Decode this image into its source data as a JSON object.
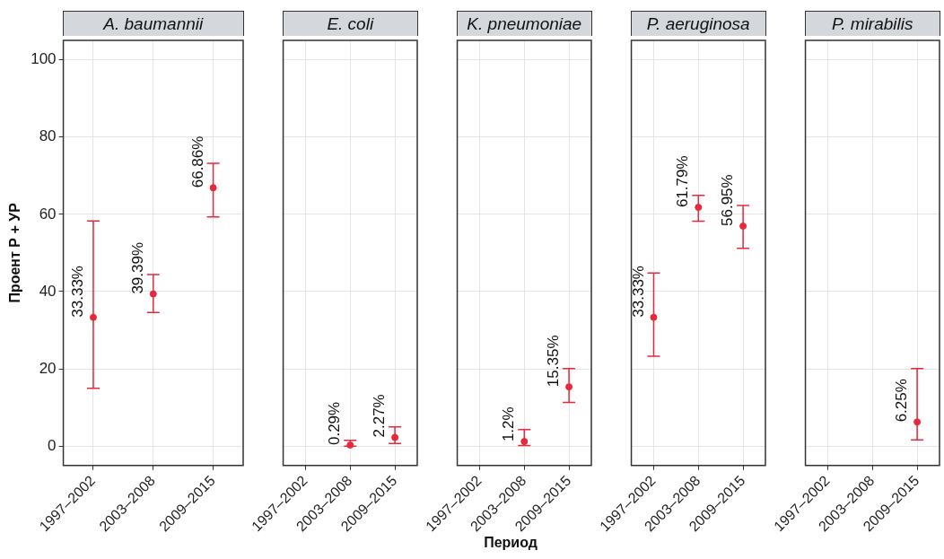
{
  "chart_data": [
    {
      "type": "scatter",
      "title": "A. baumannii",
      "ylabel": "Проент Р + УР",
      "categories": [
        "1997–2002",
        "2003–2008",
        "2009–2015"
      ],
      "series": [
        {
          "color": "#e8283c",
          "values": [
            33.33,
            39.39,
            66.86
          ],
          "errors": [
            [
              15.0,
              58.3
            ],
            [
              34.6,
              44.4
            ],
            [
              59.3,
              73.2
            ]
          ],
          "value_labels": [
            "33.33%",
            "39.39%",
            "66.86%"
          ]
        }
      ],
      "ylim": [
        -5,
        105
      ],
      "yticks": [
        0,
        20,
        40,
        60,
        80,
        100
      ],
      "grid": true,
      "marker": "circle"
    },
    {
      "type": "scatter",
      "title": "E. coli",
      "categories": [
        "1997–2002",
        "2003–2008",
        "2009–2015"
      ],
      "series": [
        {
          "color": "#e8283c",
          "values": [
            null,
            0.29,
            2.27
          ],
          "errors": [
            null,
            [
              0,
              1.5
            ],
            [
              0.7,
              5.0
            ]
          ],
          "value_labels": [
            null,
            "0.29%",
            "2.27%"
          ]
        }
      ],
      "ylim": [
        -5,
        105
      ],
      "yticks": [
        0,
        20,
        40,
        60,
        80,
        100
      ],
      "grid": true,
      "marker": "circle",
      "tick_labels": "x"
    },
    {
      "type": "scatter",
      "title": "K. pneumoniae",
      "xlabel": "Период",
      "categories": [
        "1997–2002",
        "2003–2008",
        "2009–2015"
      ],
      "series": [
        {
          "color": "#e8283c",
          "values": [
            null,
            1.2,
            15.35
          ],
          "errors": [
            null,
            [
              0.2,
              4.3
            ],
            [
              11.3,
              20.1
            ]
          ],
          "value_labels": [
            null,
            "1.2%",
            "15.35%"
          ]
        }
      ],
      "ylim": [
        -5,
        105
      ],
      "yticks": [
        0,
        20,
        40,
        60,
        80,
        100
      ],
      "grid": true,
      "marker": "circle",
      "tick_labels": "x"
    },
    {
      "type": "scatter",
      "title": "P. aeruginosa",
      "categories": [
        "1997–2002",
        "2003–2008",
        "2009–2015"
      ],
      "series": [
        {
          "color": "#e8283c",
          "values": [
            33.33,
            61.79,
            56.95
          ],
          "errors": [
            [
              23.3,
              44.8
            ],
            [
              58.2,
              64.9
            ],
            [
              51.2,
              62.3
            ]
          ],
          "value_labels": [
            "33.33%",
            "61.79%",
            "56.95%"
          ]
        }
      ],
      "ylim": [
        -5,
        105
      ],
      "yticks": [
        0,
        20,
        40,
        60,
        80,
        100
      ],
      "grid": true,
      "marker": "circle",
      "tick_labels": "x"
    },
    {
      "type": "scatter",
      "title": "P. mirabilis",
      "categories": [
        "1997–2002",
        "2003–2008",
        "2009–2015"
      ],
      "series": [
        {
          "color": "#e8283c",
          "values": [
            null,
            null,
            6.25
          ],
          "errors": [
            null,
            null,
            [
              1.6,
              20.1
            ]
          ],
          "value_labels": [
            null,
            null,
            "6.25%"
          ]
        }
      ],
      "ylim": [
        -5,
        105
      ],
      "yticks": [
        0,
        20,
        40,
        60,
        80,
        100
      ],
      "grid": true,
      "marker": "circle",
      "tick_labels": "x"
    }
  ]
}
